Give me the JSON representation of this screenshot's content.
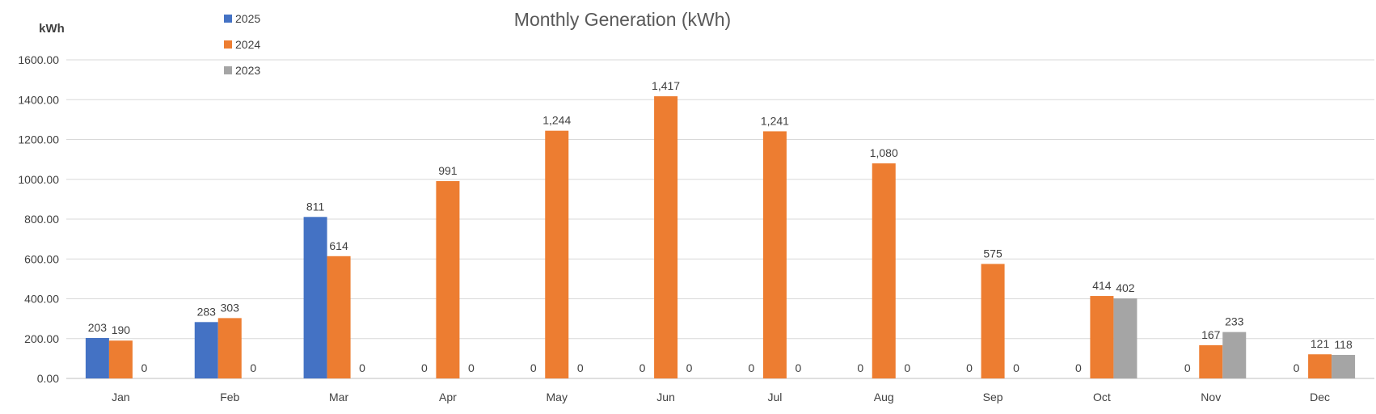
{
  "chart_data": {
    "type": "bar",
    "title": "Monthly Generation (kWh)",
    "ylabel": "kWh",
    "xlabel": "",
    "ylim": [
      0,
      1600
    ],
    "yticks": [
      "0.00",
      "200.00",
      "400.00",
      "600.00",
      "800.00",
      "1000.00",
      "1200.00",
      "1400.00",
      "1600.00"
    ],
    "ytick_values": [
      0,
      200,
      400,
      600,
      800,
      1000,
      1200,
      1400,
      1600
    ],
    "grid": true,
    "legend_position": "top-left",
    "categories": [
      "Jan",
      "Feb",
      "Mar",
      "Apr",
      "May",
      "Jun",
      "Jul",
      "Aug",
      "Sep",
      "Oct",
      "Nov",
      "Dec"
    ],
    "series": [
      {
        "name": "2025",
        "color": "#4472C4",
        "values": [
          203,
          283,
          811,
          0,
          0,
          0,
          0,
          0,
          0,
          0,
          0,
          0
        ],
        "labels": [
          "203",
          "283",
          "811",
          "0",
          "0",
          "0",
          "0",
          "0",
          "0",
          "0",
          "0",
          "0"
        ]
      },
      {
        "name": "2024",
        "color": "#ED7D31",
        "values": [
          190,
          303,
          614,
          991,
          1244,
          1417,
          1241,
          1080,
          575,
          414,
          167,
          121
        ],
        "labels": [
          "190",
          "303",
          "614",
          "991",
          "1,244",
          "1,417",
          "1,241",
          "1,080",
          "575",
          "414",
          "167",
          "121"
        ]
      },
      {
        "name": "2023",
        "color": "#A5A5A5",
        "values": [
          0,
          0,
          0,
          0,
          0,
          0,
          0,
          0,
          0,
          402,
          233,
          118
        ],
        "labels": [
          "0",
          "0",
          "0",
          "0",
          "0",
          "0",
          "0",
          "0",
          "0",
          "402",
          "233",
          "118"
        ]
      }
    ]
  }
}
